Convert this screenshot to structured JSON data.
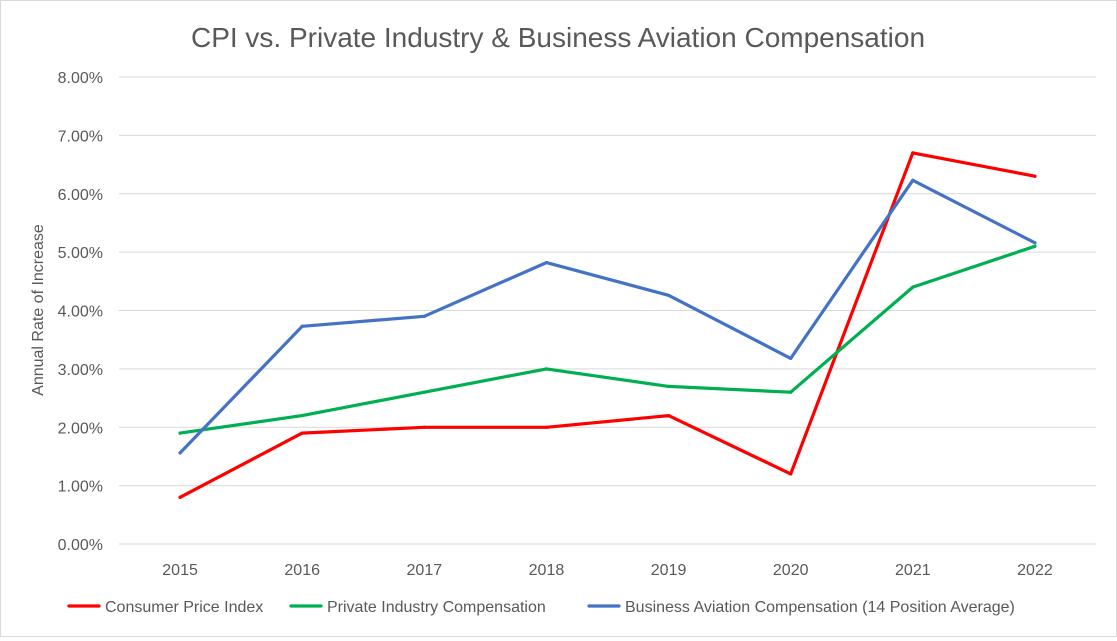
{
  "chart_data": {
    "type": "line",
    "title": "CPI vs. Private Industry & Business Aviation Compensation",
    "xlabel": "",
    "ylabel": "Annual Rate of Increase",
    "ylim": [
      0,
      8
    ],
    "y_ticks": [
      "0.00%",
      "1.00%",
      "2.00%",
      "3.00%",
      "4.00%",
      "5.00%",
      "6.00%",
      "7.00%",
      "8.00%"
    ],
    "categories": [
      "2015",
      "2016",
      "2017",
      "2018",
      "2019",
      "2020",
      "2021",
      "2022"
    ],
    "grid": true,
    "legend_position": "bottom",
    "series": [
      {
        "name": "Consumer Price Index",
        "color": "#ff0000",
        "values": [
          0.8,
          1.9,
          2.0,
          2.0,
          2.2,
          1.2,
          6.7,
          6.3
        ]
      },
      {
        "name": "Private Industry Compensation",
        "color": "#00b050",
        "values": [
          1.9,
          2.2,
          2.6,
          3.0,
          2.7,
          2.6,
          4.4,
          5.1
        ]
      },
      {
        "name": "Business Aviation Compensation (14 Position Average)",
        "color": "#4472c4",
        "values": [
          1.56,
          3.73,
          3.9,
          4.82,
          4.26,
          3.18,
          6.23,
          5.16
        ]
      }
    ]
  }
}
